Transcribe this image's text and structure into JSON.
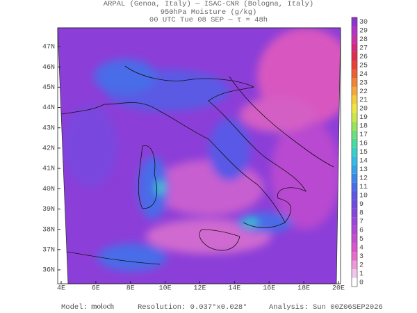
{
  "header": {
    "line1": "ARPAL (Genoa, Italy)  —  ISAC-CNR (Bologna, Italy)",
    "line2": "950hPa Moisture (g/kg)",
    "line3": "00 UTC Tue 08 SEP  —  τ = 48h"
  },
  "map": {
    "lon_labels": [
      "4E",
      "6E",
      "8E",
      "10E",
      "12E",
      "14E",
      "16E",
      "18E",
      "20E"
    ],
    "lat_labels": [
      "47N",
      "46N",
      "45N",
      "44N",
      "43N",
      "42N",
      "41N",
      "40N",
      "39N",
      "38N",
      "37N",
      "36N"
    ]
  },
  "colorbar": {
    "levels": [
      0,
      1,
      2,
      3,
      4,
      5,
      6,
      7,
      8,
      9,
      10,
      11,
      12,
      13,
      14,
      15,
      16,
      17,
      18,
      19,
      20,
      21,
      22,
      23,
      24,
      25,
      26,
      27,
      28,
      29,
      30
    ],
    "colors": [
      "#ffffff",
      "#f2c6e8",
      "#ee9ad8",
      "#e86ccc",
      "#d957c8",
      "#c44fd0",
      "#b04ad6",
      "#9b46dc",
      "#8444de",
      "#6e4ae2",
      "#5a58e6",
      "#4a6ce8",
      "#3e86ea",
      "#36a2ea",
      "#34bce2",
      "#38d0c8",
      "#46dca0",
      "#6ee07a",
      "#98e45a",
      "#c8e848",
      "#f0e640",
      "#f6cc3a",
      "#f6a838",
      "#f28436",
      "#ee6034",
      "#e84034",
      "#e02c4c",
      "#d8287a",
      "#cc30a8",
      "#b034c8",
      "#8c34d0"
    ]
  },
  "footer": {
    "model_label": "Model:",
    "model_value": "moloch",
    "resolution": "Resolution: 0.037°x0.028°",
    "analysis": "Analysis: Sun 00Z06SEP2026"
  }
}
